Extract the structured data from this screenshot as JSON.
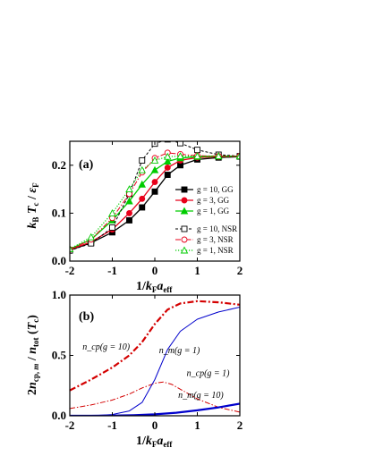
{
  "chart_data": [
    {
      "type": "line",
      "panel_label": "(a)",
      "xlabel": "1/k_F a_eff",
      "ylabel": "k_B T_c / ε_F",
      "xlim": [
        -2,
        2
      ],
      "ylim": [
        0,
        0.25
      ],
      "x_ticks": [
        -2,
        -1,
        0,
        1,
        2
      ],
      "y_ticks": [
        0.0,
        0.1,
        0.2
      ],
      "x_tick_labels": [
        "-2",
        "-1",
        "0",
        "1",
        "2"
      ],
      "y_tick_labels": [
        "0.0",
        "0.1",
        "0.2"
      ],
      "legend_position": "right",
      "series": [
        {
          "name": "g = 10, GG",
          "color": "#000000",
          "style": "solid",
          "marker": "square-filled",
          "x": [
            -2,
            -1.5,
            -1,
            -0.6,
            -0.3,
            0,
            0.3,
            0.6,
            1,
            1.5,
            2
          ],
          "y": [
            0.023,
            0.038,
            0.06,
            0.085,
            0.112,
            0.145,
            0.18,
            0.2,
            0.212,
            0.216,
            0.218
          ]
        },
        {
          "name": "g = 3, GG",
          "color": "#e8001a",
          "style": "solid",
          "marker": "circle-filled",
          "x": [
            -2,
            -1.5,
            -1,
            -0.6,
            -0.3,
            0,
            0.3,
            0.6,
            1,
            1.5,
            2
          ],
          "y": [
            0.024,
            0.04,
            0.066,
            0.1,
            0.13,
            0.165,
            0.195,
            0.21,
            0.216,
            0.218,
            0.219
          ]
        },
        {
          "name": "g = 1, GG",
          "color": "#00cc00",
          "style": "solid",
          "marker": "triangle-filled",
          "x": [
            -2,
            -1.5,
            -1,
            -0.6,
            -0.3,
            0,
            0.3,
            0.6,
            1,
            1.5,
            2
          ],
          "y": [
            0.025,
            0.045,
            0.085,
            0.125,
            0.16,
            0.19,
            0.208,
            0.215,
            0.218,
            0.219,
            0.219
          ]
        },
        {
          "name": "g = 10, NSR",
          "color": "#000000",
          "style": "dashed",
          "marker": "square-open",
          "x": [
            -2,
            -1.5,
            -1,
            -0.6,
            -0.3,
            0,
            0.3,
            0.6,
            1,
            1.5,
            2
          ],
          "y": [
            0.022,
            0.037,
            0.07,
            0.14,
            0.21,
            0.245,
            0.254,
            0.246,
            0.232,
            0.222,
            0.219
          ]
        },
        {
          "name": "g = 3, NSR",
          "color": "#e8001a",
          "style": "dashdot",
          "marker": "circle-open",
          "x": [
            -2,
            -1.5,
            -1,
            -0.6,
            -0.3,
            0,
            0.3,
            0.6,
            1,
            1.5,
            2
          ],
          "y": [
            0.024,
            0.045,
            0.09,
            0.14,
            0.185,
            0.215,
            0.226,
            0.223,
            0.22,
            0.219,
            0.219
          ]
        },
        {
          "name": "g = 1, NSR",
          "color": "#00cc00",
          "style": "dotted",
          "marker": "triangle-open",
          "x": [
            -2,
            -1.5,
            -1,
            -0.6,
            -0.3,
            0,
            0.3,
            0.6,
            1,
            1.5,
            2
          ],
          "y": [
            0.025,
            0.05,
            0.1,
            0.15,
            0.19,
            0.21,
            0.218,
            0.219,
            0.219,
            0.219,
            0.219
          ]
        }
      ]
    },
    {
      "type": "line",
      "panel_label": "(b)",
      "xlabel": "1/k_F a_eff",
      "ylabel": "2n_cp,m / n_tot (T_c)",
      "xlim": [
        -2,
        2
      ],
      "ylim": [
        0,
        1
      ],
      "x_ticks": [
        -2,
        -1,
        0,
        1,
        2
      ],
      "y_ticks": [
        0.0,
        0.5,
        1.0
      ],
      "x_tick_labels": [
        "-2",
        "-1",
        "0",
        "1",
        "2"
      ],
      "y_tick_labels": [
        "0.0",
        "0.5",
        "1.0"
      ],
      "series": [
        {
          "name": "n_cp(g = 10)",
          "color": "#d40000",
          "style": "dashdot-thick",
          "x": [
            -2,
            -1.5,
            -1,
            -0.6,
            -0.3,
            0,
            0.3,
            0.6,
            1,
            1.5,
            2
          ],
          "y": [
            0.21,
            0.3,
            0.4,
            0.5,
            0.61,
            0.76,
            0.88,
            0.93,
            0.95,
            0.94,
            0.92
          ]
        },
        {
          "name": "n_cp(g = 1)",
          "color": "#d40000",
          "style": "dashdot-thin",
          "x": [
            -2,
            -1.5,
            -1,
            -0.6,
            -0.3,
            0,
            0.2,
            0.4,
            0.7,
            1,
            1.5,
            2
          ],
          "y": [
            0.06,
            0.09,
            0.13,
            0.18,
            0.23,
            0.27,
            0.28,
            0.26,
            0.2,
            0.14,
            0.07,
            0.03
          ]
        },
        {
          "name": "n_m(g = 1)",
          "color": "#0000cc",
          "style": "solid-thin",
          "x": [
            -2,
            -1.5,
            -1,
            -0.6,
            -0.3,
            0,
            0.3,
            0.6,
            1,
            1.5,
            2
          ],
          "y": [
            0.0,
            0.0,
            0.01,
            0.04,
            0.11,
            0.3,
            0.55,
            0.7,
            0.8,
            0.86,
            0.9
          ]
        },
        {
          "name": "n_m(g = 10)",
          "color": "#0000cc",
          "style": "solid-thick",
          "x": [
            -2,
            -1.5,
            -1,
            -0.5,
            0,
            0.5,
            1,
            1.5,
            2
          ],
          "y": [
            0.0,
            0.0,
            0.002,
            0.005,
            0.012,
            0.025,
            0.045,
            0.07,
            0.1
          ]
        }
      ],
      "annotations": [
        {
          "text": "n_cp(g = 10)",
          "x": -1.7,
          "y": 0.55
        },
        {
          "text": "n_m(g = 1)",
          "x": 0.1,
          "y": 0.52
        },
        {
          "text": "n_cp(g = 1)",
          "x": 0.75,
          "y": 0.33
        },
        {
          "text": "n_m(g = 10)",
          "x": 0.55,
          "y": 0.15
        }
      ]
    }
  ]
}
